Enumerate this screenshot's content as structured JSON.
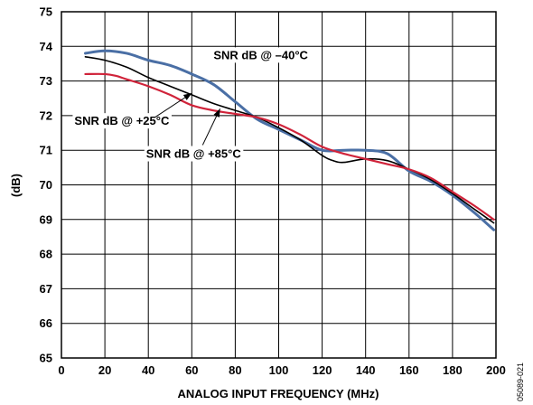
{
  "chart_data": {
    "type": "line",
    "xlabel": "ANALOG INPUT FREQUENCY (MHz)",
    "ylabel": "(dB)",
    "xlim": [
      0,
      200
    ],
    "ylim": [
      65,
      75
    ],
    "xticks": [
      0,
      20,
      40,
      60,
      80,
      100,
      120,
      140,
      160,
      180,
      200
    ],
    "yticks": [
      65,
      66,
      67,
      68,
      69,
      70,
      71,
      72,
      73,
      74,
      75
    ],
    "grid": true,
    "series": [
      {
        "name": "SNR dB @ –40°C",
        "color": "#4a6fa5",
        "x": [
          11,
          20,
          30,
          40,
          50,
          60,
          70,
          80,
          90,
          100,
          110,
          120,
          130,
          140,
          150,
          160,
          170,
          180,
          190,
          199
        ],
        "y": [
          73.8,
          73.87,
          73.8,
          73.6,
          73.45,
          73.2,
          72.9,
          72.4,
          71.9,
          71.6,
          71.3,
          71.0,
          71.0,
          71.0,
          70.9,
          70.4,
          70.1,
          69.7,
          69.2,
          68.7
        ]
      },
      {
        "name": "SNR dB @ +25°C",
        "color": "#000000",
        "x": [
          11,
          20,
          30,
          40,
          50,
          60,
          70,
          80,
          90,
          100,
          110,
          120,
          125,
          130,
          140,
          150,
          160,
          170,
          180,
          190,
          199
        ],
        "y": [
          73.7,
          73.6,
          73.4,
          73.1,
          72.85,
          72.6,
          72.35,
          72.15,
          71.95,
          71.65,
          71.3,
          70.85,
          70.7,
          70.65,
          70.75,
          70.7,
          70.45,
          70.15,
          69.75,
          69.3,
          68.9
        ]
      },
      {
        "name": "SNR dB @ +85°C",
        "color": "#d0233a",
        "x": [
          11,
          20,
          25,
          30,
          40,
          50,
          60,
          70,
          80,
          90,
          100,
          110,
          120,
          130,
          140,
          150,
          160,
          170,
          180,
          190,
          199
        ],
        "y": [
          73.2,
          73.2,
          73.15,
          73.05,
          72.85,
          72.6,
          72.3,
          72.15,
          72.05,
          71.95,
          71.75,
          71.45,
          71.1,
          70.9,
          70.75,
          70.6,
          70.45,
          70.2,
          69.8,
          69.4,
          69.0
        ]
      }
    ],
    "annotations": [
      {
        "text": "SNR dB @ –40°C",
        "series": 0,
        "x": 70,
        "y": 73.75
      },
      {
        "text": "SNR dB @ +25°C",
        "series": 1,
        "x": 6,
        "y": 71.85,
        "arrow_to": [
          60,
          72.65
        ],
        "arrow_from": [
          43,
          71.95
        ]
      },
      {
        "text": "SNR dB @ +85°C",
        "series": 2,
        "x": 39,
        "y": 70.9,
        "arrow_to": [
          73,
          72.2
        ],
        "arrow_from": [
          65,
          71.15
        ]
      }
    ],
    "figure_code": "05089-021"
  }
}
